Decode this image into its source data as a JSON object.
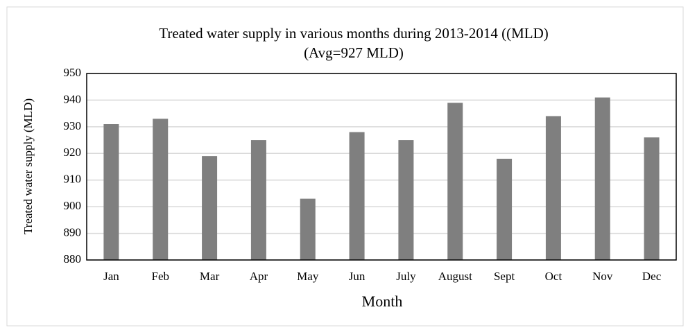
{
  "chart_data": {
    "type": "bar",
    "title": "Treated water supply  in various months during 2013-2014 ((MLD)",
    "subtitle": "(Avg=927 MLD)",
    "x_label": "Month",
    "y_label": "Treated water supply  (MLD)",
    "categories": [
      "Jan",
      "Feb",
      "Mar",
      "Apr",
      "May",
      "Jun",
      "July",
      "August",
      "Sept",
      "Oct",
      "Nov",
      "Dec"
    ],
    "values": [
      931,
      933,
      919,
      925,
      903,
      928,
      925,
      939,
      918,
      934,
      941,
      926
    ],
    "color": "#7f7f7f",
    "ylim": [
      880,
      950
    ],
    "yticks": [
      880,
      890,
      900,
      910,
      920,
      930,
      940,
      950
    ],
    "grid": true
  }
}
